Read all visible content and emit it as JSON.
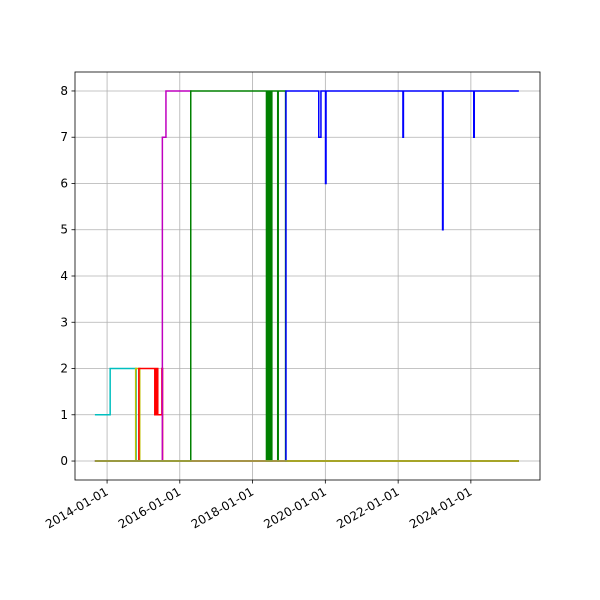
{
  "chart_data": {
    "type": "line",
    "drawstyle": "steps-post",
    "grid": true,
    "xlim": [
      "2013-02-13",
      "2025-11-25"
    ],
    "xticks": [
      "2014-01-01",
      "2016-01-01",
      "2018-01-01",
      "2020-01-01",
      "2022-01-01",
      "2024-01-01"
    ],
    "ylim": [
      -0.41,
      8.41
    ],
    "yticks": [
      0,
      1,
      2,
      3,
      4,
      5,
      6,
      7,
      8
    ],
    "series": [
      {
        "color": "#00bfbf",
        "x": [
          "2013-09-01",
          "2014-02-01",
          "2014-10-20",
          "2025-04-27"
        ],
        "values": [
          1,
          2,
          0,
          0
        ]
      },
      {
        "color": "#bfbf00",
        "x": [
          "2013-09-01",
          "2014-10-15",
          "2014-11-25",
          "2025-04-27"
        ],
        "values": [
          0,
          2,
          0,
          0
        ]
      },
      {
        "color": "#ff0000",
        "x": [
          "2013-09-01",
          "2014-11-16",
          "2015-04-25",
          "2015-05-10",
          "2015-05-25",
          "2015-07-05",
          "2015-07-12",
          "2025-04-27"
        ],
        "values": [
          0,
          2,
          1,
          2,
          1,
          2,
          0,
          0
        ]
      },
      {
        "color": "#bf00bf",
        "x": [
          "2013-09-01",
          "2015-07-10",
          "2015-08-15",
          "2016-04-20",
          "2025-04-27"
        ],
        "values": [
          0,
          7,
          8,
          0,
          0
        ]
      },
      {
        "color": "#008000",
        "x": [
          "2013-09-01",
          "2016-04-20",
          "2018-05-20",
          "2018-05-25",
          "2018-06-05",
          "2018-06-10",
          "2018-06-20",
          "2018-06-25",
          "2018-07-09",
          "2018-07-13",
          "2018-09-10",
          "2018-09-15",
          "2018-11-28",
          "2018-12-02",
          "2025-04-27"
        ],
        "values": [
          0,
          8,
          0,
          8,
          0,
          8,
          0,
          8,
          0,
          8,
          0,
          8,
          0,
          0,
          0
        ]
      },
      {
        "color": "#0000ff",
        "x": [
          "2013-09-01",
          "2018-12-02",
          "2019-10-27",
          "2019-11-18",
          "2020-01-03",
          "2020-01-08",
          "2022-02-18",
          "2022-02-23",
          "2023-03-23",
          "2023-03-28",
          "2024-01-30",
          "2024-02-04",
          "2025-04-27"
        ],
        "values": [
          0,
          8,
          7,
          8,
          6,
          8,
          7,
          8,
          5,
          8,
          7,
          8,
          8
        ]
      },
      {
        "color": "#bcbd22",
        "x": [
          "2013-09-01",
          "2025-04-27"
        ],
        "values": [
          0,
          0
        ]
      }
    ]
  }
}
